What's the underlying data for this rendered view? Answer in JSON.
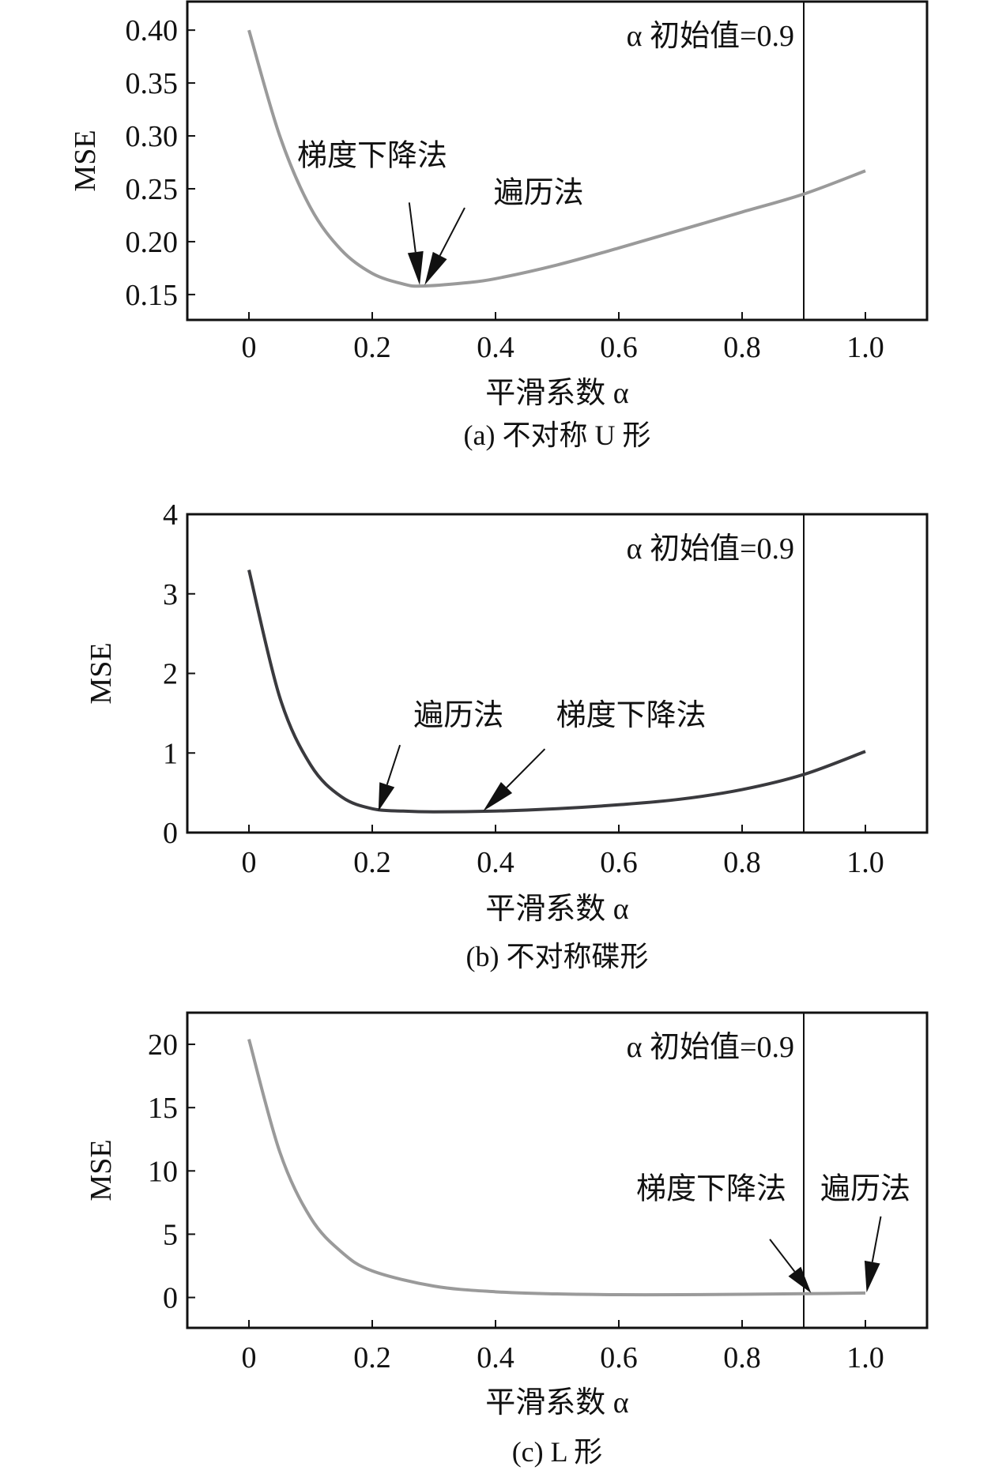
{
  "chart_data": [
    {
      "type": "line",
      "caption": "(a) 不对称 U 形",
      "xlabel": "平滑系数 α",
      "ylabel": "MSE",
      "xlim": [
        -0.1,
        1.1
      ],
      "ylim": [
        0.126,
        0.427
      ],
      "xticks": [
        "0",
        "0.2",
        "0.4",
        "0.6",
        "0.8",
        "1.0"
      ],
      "xtick_values": [
        0,
        0.2,
        0.4,
        0.6,
        0.8,
        1.0
      ],
      "yticks": [
        "0.15",
        "0.20",
        "0.25",
        "0.30",
        "0.35",
        "0.40"
      ],
      "ytick_values": [
        0.15,
        0.2,
        0.25,
        0.3,
        0.35,
        0.4
      ],
      "vline": 0.9,
      "vline_label": "α 初始值=0.9",
      "curve_color": "#9a9a9a",
      "x": [
        0,
        0.05,
        0.1,
        0.15,
        0.2,
        0.25,
        0.28,
        0.35,
        0.4,
        0.5,
        0.6,
        0.7,
        0.8,
        0.9,
        1.0
      ],
      "y": [
        0.4,
        0.3,
        0.232,
        0.192,
        0.17,
        0.16,
        0.158,
        0.161,
        0.165,
        0.178,
        0.194,
        0.211,
        0.228,
        0.245,
        0.267
      ],
      "annotations": [
        {
          "text": "梯度下降法",
          "text_at": [
            0.2,
            0.272
          ],
          "from": [
            0.26,
            0.237
          ],
          "to": [
            0.277,
            0.159
          ]
        },
        {
          "text": "遍历法",
          "text_at": [
            0.47,
            0.237
          ],
          "from": [
            0.35,
            0.232
          ],
          "to": [
            0.285,
            0.159
          ]
        }
      ]
    },
    {
      "type": "line",
      "caption": "(b) 不对称碟形",
      "xlabel": "平滑系数 α",
      "ylabel": "MSE",
      "xlim": [
        -0.1,
        1.1
      ],
      "ylim": [
        0,
        4
      ],
      "xticks": [
        "0",
        "0.2",
        "0.4",
        "0.6",
        "0.8",
        "1.0"
      ],
      "xtick_values": [
        0,
        0.2,
        0.4,
        0.6,
        0.8,
        1.0
      ],
      "yticks": [
        "0",
        "1",
        "2",
        "3",
        "4"
      ],
      "ytick_values": [
        0,
        1,
        2,
        3,
        4
      ],
      "vline": 0.9,
      "vline_label": "α 初始值=0.9",
      "curve_color": "#3a3a3e",
      "x": [
        0,
        0.05,
        0.1,
        0.15,
        0.2,
        0.25,
        0.3,
        0.4,
        0.5,
        0.6,
        0.7,
        0.8,
        0.9,
        1.0
      ],
      "y": [
        3.3,
        1.7,
        0.85,
        0.45,
        0.3,
        0.27,
        0.26,
        0.27,
        0.3,
        0.35,
        0.42,
        0.54,
        0.73,
        1.02
      ],
      "annotations": [
        {
          "text": "遍历法",
          "text_at": [
            0.34,
            1.35
          ],
          "from": [
            0.245,
            1.1
          ],
          "to": [
            0.21,
            0.27
          ]
        },
        {
          "text": "梯度下降法",
          "text_at": [
            0.62,
            1.35
          ],
          "from": [
            0.48,
            1.05
          ],
          "to": [
            0.38,
            0.27
          ]
        }
      ]
    },
    {
      "type": "line",
      "caption": "(c) L 形",
      "xlabel": "平滑系数 α",
      "ylabel": "MSE",
      "xlim": [
        -0.1,
        1.1
      ],
      "ylim": [
        -2.4,
        22.5
      ],
      "xticks": [
        "0",
        "0.2",
        "0.4",
        "0.6",
        "0.8",
        "1.0"
      ],
      "xtick_values": [
        0,
        0.2,
        0.4,
        0.6,
        0.8,
        1.0
      ],
      "yticks": [
        "0",
        "5",
        "10",
        "15",
        "20"
      ],
      "ytick_values": [
        0,
        5,
        10,
        15,
        20
      ],
      "vline": 0.9,
      "vline_label": "α 初始值=0.9",
      "curve_color": "#9a9a9a",
      "x": [
        0,
        0.05,
        0.1,
        0.15,
        0.2,
        0.3,
        0.4,
        0.5,
        0.6,
        0.7,
        0.8,
        0.9,
        1.0
      ],
      "y": [
        20.4,
        11.5,
        6.3,
        3.6,
        2.1,
        0.9,
        0.45,
        0.28,
        0.22,
        0.22,
        0.25,
        0.3,
        0.35
      ],
      "annotations": [
        {
          "text": "梯度下降法",
          "text_at": [
            0.75,
            7.8
          ],
          "from": [
            0.845,
            4.6
          ],
          "to": [
            0.912,
            0.35
          ]
        },
        {
          "text": "遍历法",
          "text_at": [
            1.0,
            7.8
          ],
          "from": [
            1.025,
            6.4
          ],
          "to": [
            1.002,
            0.4
          ]
        }
      ]
    }
  ]
}
